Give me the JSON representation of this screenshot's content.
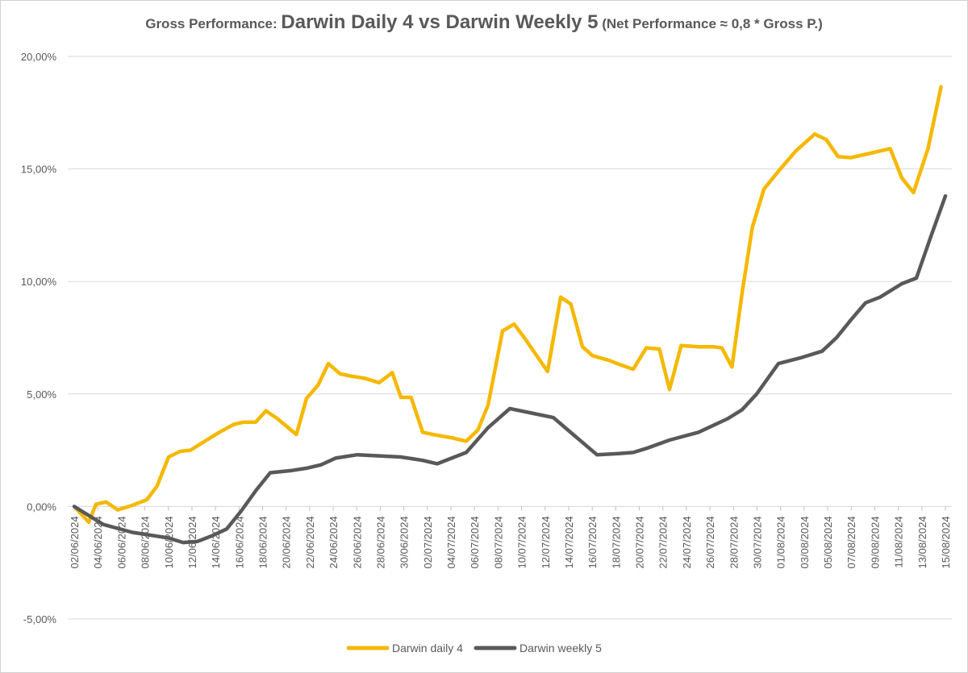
{
  "chart_data": {
    "type": "line",
    "title_prefix": "Gross Performance: ",
    "title_main": "Darwin Daily 4 vs Darwin Weekly 5",
    "title_suffix": " (Net Performance ≈ 0,8 * Gross P.)",
    "ylim": [
      -5,
      20
    ],
    "y_ticks": [
      -5,
      0,
      5,
      10,
      15,
      20
    ],
    "y_tick_labels": [
      "-5,00%",
      "0,00%",
      "5,00%",
      "10,00%",
      "15,00%",
      "20,00%"
    ],
    "x_ticks": [
      "02/06/2024",
      "04/06/2024",
      "06/06/2024",
      "08/06/2024",
      "10/06/2024",
      "12/06/2024",
      "14/06/2024",
      "16/06/2024",
      "18/06/2024",
      "20/06/2024",
      "22/06/2024",
      "24/06/2024",
      "26/06/2024",
      "28/06/2024",
      "30/06/2024",
      "02/07/2024",
      "04/07/2024",
      "06/07/2024",
      "08/07/2024",
      "10/07/2024",
      "12/07/2024",
      "14/07/2024",
      "16/07/2024",
      "18/07/2024",
      "20/07/2024",
      "22/07/2024",
      "24/07/2024",
      "26/07/2024",
      "28/07/2024",
      "30/07/2024",
      "01/08/2024",
      "03/08/2024",
      "05/08/2024",
      "07/08/2024",
      "09/08/2024",
      "11/08/2024",
      "13/08/2024",
      "15/08/2024"
    ],
    "grid": true,
    "legend_position": "bottom",
    "series": [
      {
        "name": "Darwin daily 4",
        "color": "#F5B800",
        "points": [
          [
            0,
            0.0
          ],
          [
            1,
            -0.7
          ],
          [
            1.5,
            0.1
          ],
          [
            2.2,
            0.2
          ],
          [
            3,
            -0.15
          ],
          [
            4,
            0.05
          ],
          [
            5,
            0.3
          ],
          [
            5.7,
            0.9
          ],
          [
            6.5,
            2.2
          ],
          [
            7.3,
            2.45
          ],
          [
            8,
            2.5
          ],
          [
            9,
            2.9
          ],
          [
            10,
            3.3
          ],
          [
            11,
            3.65
          ],
          [
            11.7,
            3.75
          ],
          [
            12.5,
            3.75
          ],
          [
            13.2,
            4.25
          ],
          [
            14,
            3.9
          ],
          [
            15.3,
            3.2
          ],
          [
            16,
            4.8
          ],
          [
            16.8,
            5.4
          ],
          [
            17.5,
            6.35
          ],
          [
            18.3,
            5.9
          ],
          [
            19,
            5.8
          ],
          [
            20,
            5.7
          ],
          [
            21,
            5.5
          ],
          [
            21.9,
            5.95
          ],
          [
            22.5,
            4.85
          ],
          [
            23.2,
            4.85
          ],
          [
            24,
            3.3
          ],
          [
            24.7,
            3.2
          ],
          [
            26,
            3.05
          ],
          [
            27,
            2.9
          ],
          [
            27.8,
            3.4
          ],
          [
            28.5,
            4.5
          ],
          [
            29.5,
            7.8
          ],
          [
            30.3,
            8.1
          ],
          [
            31,
            7.5
          ],
          [
            32.6,
            6.0
          ],
          [
            33.5,
            9.3
          ],
          [
            34.2,
            9.0
          ],
          [
            35,
            7.1
          ],
          [
            35.7,
            6.7
          ],
          [
            36.8,
            6.5
          ],
          [
            37.6,
            6.3
          ],
          [
            38.5,
            6.1
          ],
          [
            39.4,
            7.05
          ],
          [
            40.3,
            7.0
          ],
          [
            41,
            5.2
          ],
          [
            41.8,
            7.15
          ],
          [
            43,
            7.1
          ],
          [
            44,
            7.1
          ],
          [
            44.6,
            7.05
          ],
          [
            45.3,
            6.2
          ],
          [
            46,
            9.5
          ],
          [
            46.7,
            12.4
          ],
          [
            47.5,
            14.1
          ],
          [
            48.5,
            14.9
          ],
          [
            49.7,
            15.8
          ],
          [
            51,
            16.55
          ],
          [
            51.8,
            16.3
          ],
          [
            52.6,
            15.55
          ],
          [
            53.5,
            15.5
          ],
          [
            54.5,
            15.65
          ],
          [
            55.5,
            15.8
          ],
          [
            56.2,
            15.9
          ],
          [
            57,
            14.6
          ],
          [
            57.8,
            13.95
          ],
          [
            58.8,
            15.9
          ],
          [
            59.7,
            18.65
          ]
        ]
      },
      {
        "name": "Darwin weekly 5",
        "color": "#595959",
        "points": [
          [
            0,
            0.0
          ],
          [
            2,
            -0.8
          ],
          [
            4,
            -1.15
          ],
          [
            5.5,
            -1.3
          ],
          [
            6.5,
            -1.4
          ],
          [
            7.5,
            -1.6
          ],
          [
            8.5,
            -1.55
          ],
          [
            9.5,
            -1.3
          ],
          [
            10.5,
            -1.0
          ],
          [
            11.5,
            -0.2
          ],
          [
            12.5,
            0.7
          ],
          [
            13.5,
            1.5
          ],
          [
            15,
            1.6
          ],
          [
            16,
            1.7
          ],
          [
            17,
            1.85
          ],
          [
            18,
            2.15
          ],
          [
            19.5,
            2.3
          ],
          [
            21,
            2.25
          ],
          [
            22.5,
            2.2
          ],
          [
            24,
            2.05
          ],
          [
            25,
            1.9
          ],
          [
            27,
            2.4
          ],
          [
            28.5,
            3.5
          ],
          [
            30,
            4.35
          ],
          [
            31.5,
            4.15
          ],
          [
            33,
            3.95
          ],
          [
            34,
            3.4
          ],
          [
            36,
            2.3
          ],
          [
            37.5,
            2.35
          ],
          [
            38.5,
            2.4
          ],
          [
            39.5,
            2.6
          ],
          [
            41,
            2.95
          ],
          [
            43,
            3.3
          ],
          [
            45,
            3.9
          ],
          [
            46,
            4.3
          ],
          [
            47,
            5.0
          ],
          [
            48.5,
            6.35
          ],
          [
            50,
            6.6
          ],
          [
            51.5,
            6.9
          ],
          [
            52.5,
            7.5
          ],
          [
            53.5,
            8.3
          ],
          [
            54.5,
            9.05
          ],
          [
            55.5,
            9.3
          ],
          [
            57,
            9.9
          ],
          [
            58,
            10.15
          ],
          [
            59,
            12.0
          ],
          [
            60,
            13.8
          ]
        ]
      }
    ]
  }
}
